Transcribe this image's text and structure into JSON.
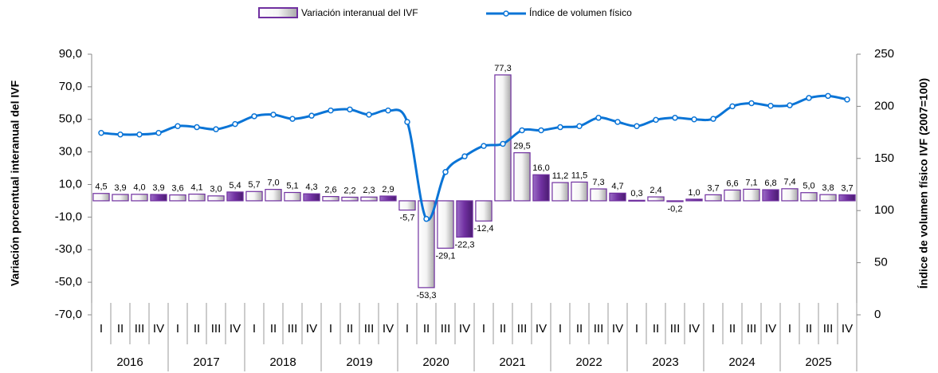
{
  "chart_data": {
    "type": "bar_line",
    "y_label": "Variación porcentual interanual del IVF",
    "y2_label": "Índice de volumen físico IVF (2007=100)",
    "categories": [
      "I",
      "II",
      "III",
      "IV",
      "I",
      "II",
      "III",
      "IV",
      "I",
      "II",
      "III",
      "IV",
      "I",
      "II",
      "III",
      "IV",
      "I",
      "II",
      "III",
      "IV",
      "I",
      "II",
      "III",
      "IV",
      "I",
      "II",
      "III",
      "IV",
      "I",
      "II",
      "III",
      "IV",
      "I",
      "II",
      "III",
      "IV",
      "I",
      "II",
      "III",
      "IV"
    ],
    "years": [
      "2016",
      "2017",
      "2018",
      "2019",
      "2020",
      "2021",
      "2022",
      "2023",
      "2024",
      "2025"
    ],
    "series": [
      {
        "name": "Variación interanual del IVF",
        "color": "#7030a0",
        "kind": "bar",
        "values": [
          4.5,
          3.9,
          4.0,
          3.9,
          3.6,
          4.1,
          3.0,
          5.4,
          5.7,
          7.0,
          5.1,
          4.3,
          2.6,
          2.2,
          2.3,
          2.9,
          -5.7,
          -53.3,
          -29.1,
          -22.3,
          -12.4,
          77.3,
          29.5,
          16.0,
          11.2,
          11.5,
          7.3,
          4.7,
          0.3,
          2.4,
          -0.2,
          1.0,
          3.7,
          6.6,
          7.1,
          6.8,
          7.4,
          5.0,
          3.8,
          3.7
        ],
        "value_labels": [
          "4,5",
          "3,9",
          "4,0",
          "3,9",
          "3,6",
          "4,1",
          "3,0",
          "5,4",
          "5,7",
          "7,0",
          "5,1",
          "4,3",
          "2,6",
          "2,2",
          "2,3",
          "2,9",
          "-5,7",
          "-53,3",
          "-29,1",
          "-22,3",
          "-12,4",
          "77,3",
          "29,5",
          "16,0",
          "11,2",
          "11,5",
          "7,3",
          "4,7",
          "0,3",
          "2,4",
          "-0,2",
          "1,0",
          "3,7",
          "6,6",
          "7,1",
          "6,8",
          "7,4",
          "5,0",
          "3,8",
          "3,7"
        ]
      },
      {
        "name": "Índice de volumen físico",
        "color": "#0a74d6",
        "kind": "line",
        "axis": "y2",
        "values": [
          174.5,
          173,
          173,
          174.5,
          181,
          180,
          178,
          183,
          190.5,
          192,
          188,
          191,
          196,
          197,
          192,
          196,
          185,
          92,
          137,
          152,
          162,
          164,
          177,
          177,
          180,
          181,
          189,
          185,
          181,
          187,
          189,
          187.5,
          188,
          200,
          203,
          200.5,
          201,
          208,
          210,
          206.5
        ]
      }
    ],
    "ylim": [
      -70,
      90
    ],
    "yticks": [
      {
        "value": -70,
        "label": "-70,0"
      },
      {
        "value": -50,
        "label": "-50,0"
      },
      {
        "value": -30,
        "label": "-30,0"
      },
      {
        "value": -10,
        "label": "-10,0"
      },
      {
        "value": 10,
        "label": "10,0"
      },
      {
        "value": 30,
        "label": "30,0"
      },
      {
        "value": 50,
        "label": "50,0"
      },
      {
        "value": 70,
        "label": "70,0"
      },
      {
        "value": 90,
        "label": "90,0"
      }
    ],
    "y2lim": [
      0,
      250
    ],
    "y2ticks": [
      0,
      50,
      100,
      150,
      200,
      250
    ]
  }
}
